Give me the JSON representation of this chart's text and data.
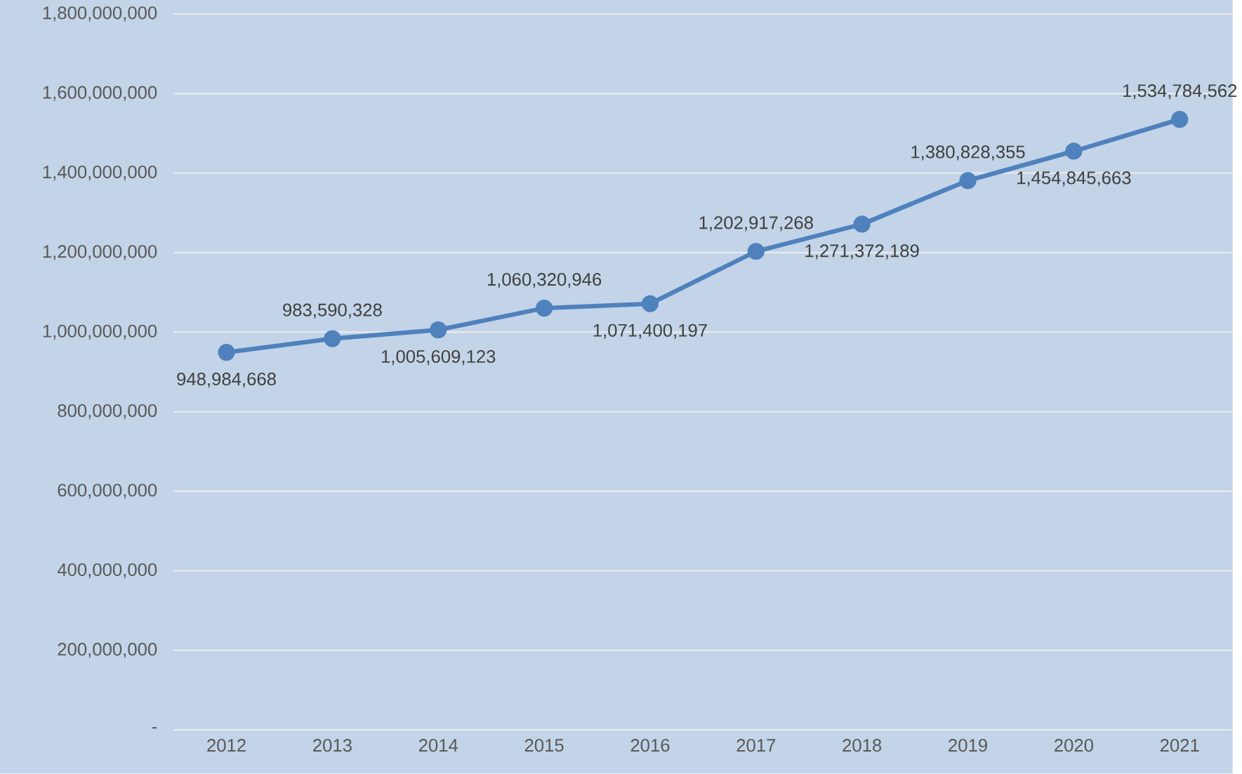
{
  "chart_data": {
    "type": "line",
    "categories": [
      "2012",
      "2013",
      "2014",
      "2015",
      "2016",
      "2017",
      "2018",
      "2019",
      "2020",
      "2021"
    ],
    "series": [
      {
        "color": "#4f81bd",
        "values": [
          948984668,
          983590328,
          1005609123,
          1060320946,
          1071400197,
          1202917268,
          1271372189,
          1380828355,
          1454845663,
          1534784562
        ],
        "value_labels": [
          "948,984,668",
          "983,590,328",
          "1,005,609,123",
          "1,060,320,946",
          "1,071,400,197",
          "1,202,917,268",
          "1,271,372,189",
          "1,380,828,355",
          "1,454,845,663",
          "1,534,784,562"
        ]
      }
    ],
    "ylim": [
      0,
      1800000000
    ],
    "yticks": [
      {
        "value": 0,
        "label": "-"
      },
      {
        "value": 200000000,
        "label": "200,000,000"
      },
      {
        "value": 400000000,
        "label": "400,000,000"
      },
      {
        "value": 600000000,
        "label": "600,000,000"
      },
      {
        "value": 800000000,
        "label": "800,000,000"
      },
      {
        "value": 1000000000,
        "label": "1,000,000,000"
      },
      {
        "value": 1200000000,
        "label": "1,200,000,000"
      },
      {
        "value": 1400000000,
        "label": "1,400,000,000"
      },
      {
        "value": 1600000000,
        "label": "1,600,000,000"
      },
      {
        "value": 1800000000,
        "label": "1,800,000,000"
      }
    ],
    "grid": "y",
    "legend": false,
    "marker": "circle",
    "line_style": "solid"
  }
}
